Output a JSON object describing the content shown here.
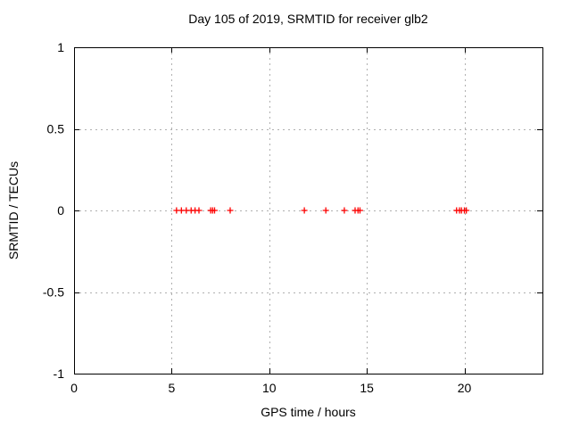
{
  "chart_data": {
    "type": "scatter",
    "title": "Day 105 of 2019, SRMTID for receiver glb2",
    "xlabel": "GPS time / hours",
    "ylabel": "SRMTID / TECUs",
    "xlim": [
      0,
      24
    ],
    "ylim": [
      -1,
      1
    ],
    "xticks": [
      0,
      5,
      10,
      15,
      20
    ],
    "xtick_labels": [
      "0",
      "5",
      "10",
      "15",
      "20"
    ],
    "yticks": [
      -1,
      -0.5,
      0,
      0.5,
      1
    ],
    "ytick_labels": [
      "-1",
      "-0.5",
      "0",
      "0.5",
      "1"
    ],
    "grid": true,
    "legend": "none",
    "marker": "plus",
    "marker_size": 7,
    "series": [
      {
        "name": "SRMTID",
        "x": [
          5.25,
          5.5,
          5.75,
          6.0,
          6.2,
          6.4,
          7.0,
          7.1,
          7.2,
          8.0,
          11.8,
          12.9,
          13.85,
          14.4,
          14.55,
          14.65,
          19.6,
          19.75,
          19.85,
          20.0,
          20.1
        ],
        "y": [
          0,
          0,
          0,
          0,
          0,
          0,
          0,
          0,
          0,
          0,
          0,
          0,
          0,
          0,
          0,
          0,
          0,
          0,
          0,
          0,
          0
        ]
      }
    ],
    "colors": {
      "marker": "#ff0000",
      "grid": "#b0b0b0",
      "axis": "#000000",
      "background": "#ffffff",
      "text": "#000000"
    }
  }
}
